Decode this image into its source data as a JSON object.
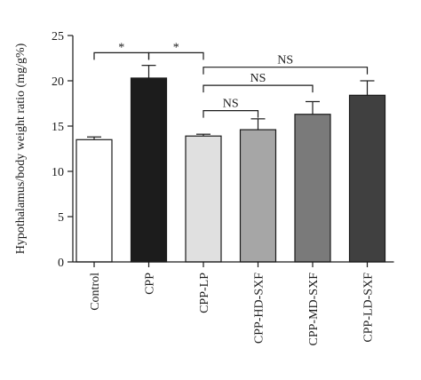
{
  "chart_data": {
    "type": "bar",
    "title": "",
    "xlabel": "",
    "ylabel": "Hypothalamus/body weight ratio (mg/g%)",
    "ylim": [
      0,
      25
    ],
    "yticks": [
      "0",
      "5",
      "10",
      "15",
      "20",
      "25"
    ],
    "grid": false,
    "categories": [
      "Control",
      "CPP",
      "CPP-LP",
      "CPP-HD-SXF",
      "CPP-MD-SXF",
      "CPP-LD-SXF"
    ],
    "values": [
      13.5,
      20.3,
      13.9,
      14.6,
      16.3,
      18.4
    ],
    "errors": [
      0.3,
      1.4,
      0.2,
      1.2,
      1.4,
      1.6
    ],
    "bar_colors": [
      "#ffffff",
      "#1c1c1c",
      "#e0e0e0",
      "#a6a6a6",
      "#7a7a7a",
      "#404040"
    ],
    "significance": [
      {
        "from": 0,
        "to": 1,
        "label": "*",
        "y": 23.1
      },
      {
        "from": 1,
        "to": 2,
        "label": "*",
        "y": 23.1
      },
      {
        "from": 2,
        "to": 5,
        "label": "NS",
        "y": 21.5
      },
      {
        "from": 2,
        "to": 4,
        "label": "NS",
        "y": 19.5
      },
      {
        "from": 2,
        "to": 3,
        "label": "NS",
        "y": 16.7
      }
    ]
  }
}
